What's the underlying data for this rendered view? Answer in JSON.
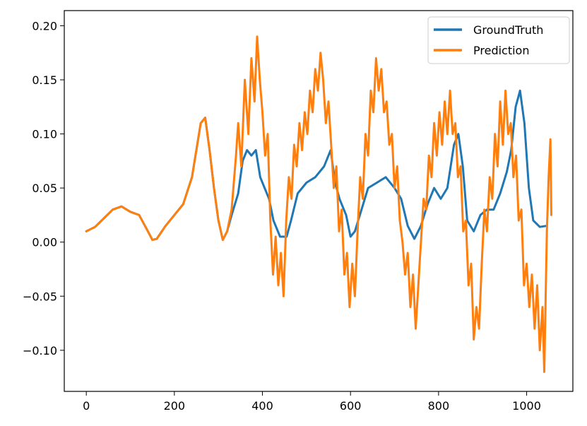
{
  "chart_data": {
    "type": "line",
    "title": "",
    "xlabel": "",
    "ylabel": "",
    "xlim": [
      -50,
      1105
    ],
    "ylim": [
      -0.138,
      0.214
    ],
    "xticks": [
      0,
      200,
      400,
      600,
      800,
      1000
    ],
    "xtick_labels": [
      "0",
      "200",
      "400",
      "600",
      "800",
      "1000"
    ],
    "yticks": [
      -0.1,
      -0.05,
      0.0,
      0.05,
      0.1,
      0.15,
      0.2
    ],
    "ytick_labels": [
      "−0.10",
      "−0.05",
      "0.00",
      "0.05",
      "0.10",
      "0.15",
      "0.20"
    ],
    "grid": false,
    "legend_position": "top-right",
    "series": [
      {
        "name": "GroundTruth",
        "color": "#1f77b4",
        "points": [
          [
            0,
            0.01
          ],
          [
            20,
            0.014
          ],
          [
            40,
            0.022
          ],
          [
            60,
            0.03
          ],
          [
            80,
            0.033
          ],
          [
            100,
            0.028
          ],
          [
            120,
            0.025
          ],
          [
            140,
            0.01
          ],
          [
            150,
            0.002
          ],
          [
            160,
            0.003
          ],
          [
            180,
            0.015
          ],
          [
            200,
            0.025
          ],
          [
            220,
            0.035
          ],
          [
            240,
            0.06
          ],
          [
            260,
            0.11
          ],
          [
            270,
            0.115
          ],
          [
            280,
            0.085
          ],
          [
            290,
            0.05
          ],
          [
            300,
            0.02
          ],
          [
            310,
            0.002
          ],
          [
            320,
            0.01
          ],
          [
            330,
            0.025
          ],
          [
            345,
            0.045
          ],
          [
            355,
            0.075
          ],
          [
            365,
            0.085
          ],
          [
            375,
            0.08
          ],
          [
            385,
            0.085
          ],
          [
            395,
            0.06
          ],
          [
            405,
            0.05
          ],
          [
            415,
            0.04
          ],
          [
            425,
            0.02
          ],
          [
            440,
            0.005
          ],
          [
            455,
            0.005
          ],
          [
            465,
            0.02
          ],
          [
            480,
            0.045
          ],
          [
            500,
            0.055
          ],
          [
            520,
            0.06
          ],
          [
            540,
            0.07
          ],
          [
            555,
            0.085
          ],
          [
            565,
            0.055
          ],
          [
            575,
            0.04
          ],
          [
            590,
            0.025
          ],
          [
            600,
            0.005
          ],
          [
            610,
            0.01
          ],
          [
            625,
            0.03
          ],
          [
            640,
            0.05
          ],
          [
            660,
            0.055
          ],
          [
            680,
            0.06
          ],
          [
            700,
            0.05
          ],
          [
            715,
            0.04
          ],
          [
            730,
            0.015
          ],
          [
            745,
            0.003
          ],
          [
            760,
            0.015
          ],
          [
            775,
            0.035
          ],
          [
            790,
            0.05
          ],
          [
            805,
            0.04
          ],
          [
            820,
            0.05
          ],
          [
            835,
            0.09
          ],
          [
            845,
            0.1
          ],
          [
            855,
            0.07
          ],
          [
            865,
            0.02
          ],
          [
            880,
            0.01
          ],
          [
            895,
            0.025
          ],
          [
            910,
            0.03
          ],
          [
            925,
            0.03
          ],
          [
            940,
            0.045
          ],
          [
            955,
            0.065
          ],
          [
            965,
            0.085
          ],
          [
            975,
            0.125
          ],
          [
            985,
            0.14
          ],
          [
            995,
            0.11
          ],
          [
            1005,
            0.05
          ],
          [
            1015,
            0.02
          ],
          [
            1030,
            0.014
          ],
          [
            1045,
            0.015
          ]
        ]
      },
      {
        "name": "Prediction",
        "color": "#ff7f0e",
        "points": [
          [
            0,
            0.01
          ],
          [
            20,
            0.014
          ],
          [
            40,
            0.022
          ],
          [
            60,
            0.03
          ],
          [
            80,
            0.033
          ],
          [
            100,
            0.028
          ],
          [
            120,
            0.025
          ],
          [
            140,
            0.01
          ],
          [
            150,
            0.002
          ],
          [
            160,
            0.003
          ],
          [
            180,
            0.015
          ],
          [
            200,
            0.025
          ],
          [
            220,
            0.035
          ],
          [
            240,
            0.06
          ],
          [
            260,
            0.11
          ],
          [
            270,
            0.115
          ],
          [
            280,
            0.085
          ],
          [
            290,
            0.05
          ],
          [
            300,
            0.02
          ],
          [
            310,
            0.002
          ],
          [
            320,
            0.01
          ],
          [
            330,
            0.03
          ],
          [
            340,
            0.08
          ],
          [
            345,
            0.11
          ],
          [
            352,
            0.07
          ],
          [
            360,
            0.15
          ],
          [
            368,
            0.1
          ],
          [
            375,
            0.17
          ],
          [
            382,
            0.13
          ],
          [
            388,
            0.19
          ],
          [
            394,
            0.15
          ],
          [
            400,
            0.12
          ],
          [
            406,
            0.08
          ],
          [
            412,
            0.1
          ],
          [
            418,
            0.02
          ],
          [
            424,
            -0.03
          ],
          [
            430,
            0.005
          ],
          [
            436,
            -0.04
          ],
          [
            442,
            -0.01
          ],
          [
            448,
            -0.05
          ],
          [
            454,
            0.02
          ],
          [
            460,
            0.06
          ],
          [
            466,
            0.04
          ],
          [
            472,
            0.09
          ],
          [
            478,
            0.07
          ],
          [
            484,
            0.11
          ],
          [
            490,
            0.085
          ],
          [
            496,
            0.12
          ],
          [
            502,
            0.1
          ],
          [
            508,
            0.14
          ],
          [
            514,
            0.12
          ],
          [
            520,
            0.16
          ],
          [
            526,
            0.14
          ],
          [
            532,
            0.175
          ],
          [
            538,
            0.15
          ],
          [
            544,
            0.11
          ],
          [
            550,
            0.13
          ],
          [
            556,
            0.09
          ],
          [
            562,
            0.05
          ],
          [
            568,
            0.07
          ],
          [
            574,
            0.01
          ],
          [
            580,
            0.03
          ],
          [
            586,
            -0.03
          ],
          [
            592,
            -0.01
          ],
          [
            598,
            -0.06
          ],
          [
            604,
            -0.02
          ],
          [
            610,
            -0.05
          ],
          [
            616,
            0.01
          ],
          [
            622,
            0.06
          ],
          [
            628,
            0.04
          ],
          [
            634,
            0.1
          ],
          [
            640,
            0.08
          ],
          [
            646,
            0.14
          ],
          [
            652,
            0.12
          ],
          [
            658,
            0.17
          ],
          [
            664,
            0.14
          ],
          [
            670,
            0.16
          ],
          [
            676,
            0.12
          ],
          [
            682,
            0.13
          ],
          [
            688,
            0.09
          ],
          [
            694,
            0.1
          ],
          [
            700,
            0.05
          ],
          [
            706,
            0.07
          ],
          [
            712,
            0.02
          ],
          [
            718,
            0.0
          ],
          [
            724,
            -0.03
          ],
          [
            730,
            -0.01
          ],
          [
            736,
            -0.06
          ],
          [
            742,
            -0.03
          ],
          [
            748,
            -0.08
          ],
          [
            754,
            -0.04
          ],
          [
            760,
            0.0
          ],
          [
            766,
            0.04
          ],
          [
            772,
            0.03
          ],
          [
            778,
            0.08
          ],
          [
            784,
            0.06
          ],
          [
            790,
            0.11
          ],
          [
            796,
            0.08
          ],
          [
            802,
            0.12
          ],
          [
            808,
            0.09
          ],
          [
            814,
            0.13
          ],
          [
            820,
            0.1
          ],
          [
            826,
            0.14
          ],
          [
            832,
            0.1
          ],
          [
            838,
            0.11
          ],
          [
            844,
            0.06
          ],
          [
            850,
            0.07
          ],
          [
            856,
            0.01
          ],
          [
            862,
            0.02
          ],
          [
            868,
            -0.04
          ],
          [
            874,
            -0.02
          ],
          [
            880,
            -0.09
          ],
          [
            886,
            -0.06
          ],
          [
            892,
            -0.08
          ],
          [
            898,
            -0.02
          ],
          [
            904,
            0.03
          ],
          [
            910,
            0.01
          ],
          [
            916,
            0.06
          ],
          [
            922,
            0.04
          ],
          [
            928,
            0.1
          ],
          [
            934,
            0.07
          ],
          [
            940,
            0.13
          ],
          [
            946,
            0.09
          ],
          [
            952,
            0.14
          ],
          [
            958,
            0.1
          ],
          [
            964,
            0.11
          ],
          [
            970,
            0.06
          ],
          [
            976,
            0.08
          ],
          [
            982,
            0.02
          ],
          [
            988,
            0.03
          ],
          [
            994,
            -0.04
          ],
          [
            1000,
            -0.02
          ],
          [
            1006,
            -0.06
          ],
          [
            1012,
            -0.03
          ],
          [
            1018,
            -0.08
          ],
          [
            1024,
            -0.04
          ],
          [
            1030,
            -0.1
          ],
          [
            1036,
            -0.06
          ],
          [
            1040,
            -0.12
          ],
          [
            1046,
            0.01
          ],
          [
            1050,
            0.06
          ],
          [
            1054,
            0.095
          ],
          [
            1056,
            0.025
          ]
        ]
      }
    ]
  }
}
